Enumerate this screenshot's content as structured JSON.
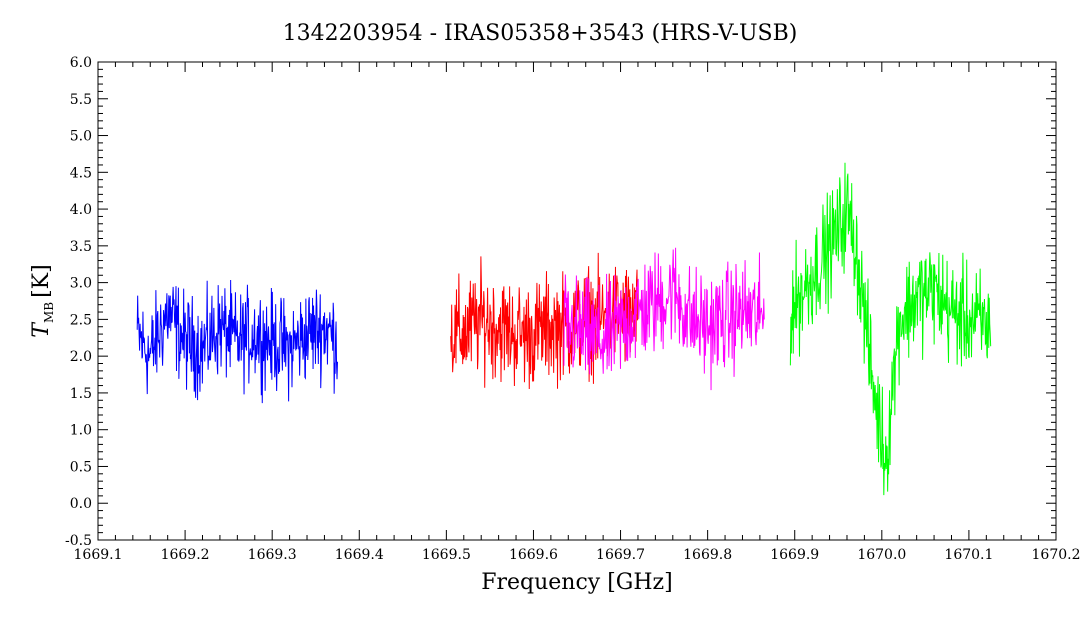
{
  "chart_data": {
    "type": "line",
    "title": "1342203954 - IRAS05358+3543 (HRS-V-USB)",
    "xlabel": "Frequency [GHz]",
    "ylabel_main": "T",
    "ylabel_sub": "MB",
    "ylabel_unit": "[K]",
    "xlim": [
      1669.1,
      1670.2
    ],
    "ylim": [
      -0.5,
      6.0
    ],
    "x_ticks": [
      "1669.1",
      "1669.2",
      "1669.3",
      "1669.4",
      "1669.5",
      "1669.6",
      "1669.7",
      "1669.8",
      "1669.9",
      "1670.0",
      "1670.1",
      "1670.2"
    ],
    "y_ticks": [
      "-0.5",
      "0.0",
      "0.5",
      "1.0",
      "1.5",
      "2.0",
      "2.5",
      "3.0",
      "3.5",
      "4.0",
      "4.5",
      "5.0",
      "5.5",
      "6.0"
    ],
    "grid": false,
    "series": [
      {
        "color": "#0000ff",
        "x": [
          1669.145,
          1669.16,
          1669.18,
          1669.2,
          1669.22,
          1669.24,
          1669.26,
          1669.28,
          1669.3,
          1669.32,
          1669.34,
          1669.36,
          1669.375
        ],
        "y": [
          2.3,
          2.0,
          2.6,
          2.2,
          2.1,
          2.4,
          2.2,
          2.3,
          2.2,
          2.1,
          2.3,
          2.4,
          2.2
        ],
        "noise": 0.45
      },
      {
        "color": "#ff0000",
        "x": [
          1669.505,
          1669.52,
          1669.54,
          1669.56,
          1669.58,
          1669.6,
          1669.62,
          1669.64,
          1669.66,
          1669.68,
          1669.7,
          1669.72
        ],
        "y": [
          2.3,
          2.3,
          2.5,
          2.4,
          2.3,
          2.3,
          2.4,
          2.4,
          2.5,
          2.5,
          2.6,
          2.5
        ],
        "noise": 0.5
      },
      {
        "color": "#ff00ff",
        "x": [
          1669.635,
          1669.66,
          1669.68,
          1669.7,
          1669.72,
          1669.74,
          1669.76,
          1669.78,
          1669.8,
          1669.82,
          1669.84,
          1669.865
        ],
        "y": [
          2.4,
          2.3,
          2.2,
          2.4,
          2.6,
          2.7,
          2.9,
          2.5,
          2.4,
          2.5,
          2.6,
          2.5
        ],
        "noise": 0.5
      },
      {
        "color": "#00ff00",
        "x": [
          1669.895,
          1669.91,
          1669.93,
          1669.95,
          1669.96,
          1669.97,
          1669.98,
          1669.99,
          1670.0,
          1670.005,
          1670.01,
          1670.02,
          1670.04,
          1670.06,
          1670.08,
          1670.1,
          1670.125
        ],
        "y": [
          2.6,
          2.9,
          3.3,
          3.7,
          4.0,
          3.5,
          2.6,
          1.6,
          0.9,
          0.6,
          1.3,
          2.5,
          2.8,
          2.9,
          2.6,
          2.5,
          2.4
        ],
        "noise": 0.5
      }
    ]
  }
}
